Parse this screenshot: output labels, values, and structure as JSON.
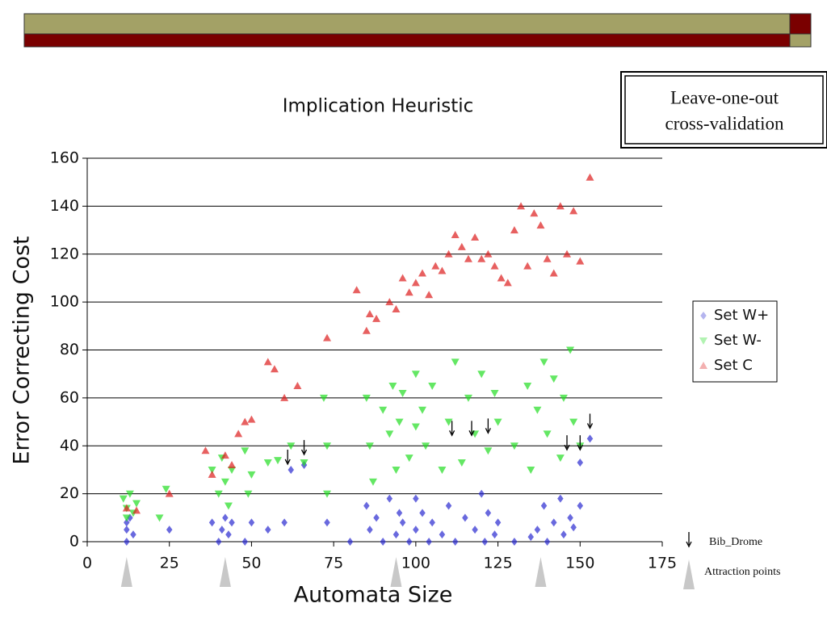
{
  "slide": {
    "box_lines": [
      "Leave-one-out",
      "cross-validation"
    ]
  },
  "chart_data": {
    "type": "scatter",
    "title": "Implication Heuristic",
    "x_label": "Automata Size",
    "y_label": "Error Correcting Cost",
    "xlim": [
      0,
      175
    ],
    "ylim": [
      0,
      160
    ],
    "xticks": [
      0,
      25,
      50,
      75,
      100,
      125,
      150,
      175
    ],
    "yticks": [
      0,
      20,
      40,
      60,
      80,
      100,
      120,
      140,
      160
    ],
    "grid": true,
    "legend": "right",
    "series": [
      {
        "name": "Set W+",
        "color": "#2a2ad0",
        "marker": "diamond",
        "x": [
          12,
          12,
          12,
          13,
          14,
          25,
          38,
          40,
          41,
          42,
          43,
          44,
          48,
          50,
          55,
          60,
          62,
          66,
          73,
          80,
          85,
          86,
          88,
          90,
          92,
          94,
          95,
          96,
          98,
          100,
          100,
          102,
          104,
          105,
          108,
          110,
          112,
          115,
          118,
          120,
          121,
          122,
          124,
          125,
          130,
          135,
          137,
          139,
          140,
          142,
          144,
          145,
          147,
          148,
          150,
          150,
          153
        ],
        "y": [
          8,
          5,
          0,
          10,
          3,
          5,
          8,
          0,
          5,
          10,
          3,
          8,
          0,
          8,
          5,
          8,
          30,
          32,
          8,
          0,
          15,
          5,
          10,
          0,
          18,
          3,
          12,
          8,
          0,
          18,
          5,
          12,
          0,
          8,
          3,
          15,
          0,
          10,
          5,
          20,
          0,
          12,
          3,
          8,
          0,
          2,
          5,
          15,
          0,
          8,
          18,
          3,
          10,
          6,
          15,
          33,
          43
        ]
      },
      {
        "name": "Set W-",
        "color": "#22dd22",
        "marker": "triangle-down",
        "x": [
          11,
          12,
          12,
          13,
          14,
          15,
          22,
          24,
          38,
          40,
          41,
          42,
          43,
          44,
          48,
          49,
          50,
          55,
          58,
          62,
          66,
          72,
          73,
          73,
          85,
          86,
          87,
          90,
          92,
          93,
          94,
          95,
          96,
          98,
          100,
          100,
          102,
          103,
          105,
          108,
          110,
          112,
          114,
          116,
          118,
          120,
          122,
          124,
          125,
          130,
          134,
          135,
          137,
          139,
          140,
          142,
          144,
          145,
          147,
          148,
          150
        ],
        "y": [
          18,
          14,
          10,
          20,
          12,
          16,
          10,
          22,
          30,
          20,
          35,
          25,
          15,
          30,
          38,
          20,
          28,
          33,
          34,
          40,
          33,
          60,
          40,
          20,
          60,
          40,
          25,
          55,
          45,
          65,
          30,
          50,
          62,
          35,
          70,
          48,
          55,
          40,
          65,
          30,
          50,
          75,
          33,
          60,
          45,
          70,
          38,
          62,
          50,
          40,
          65,
          30,
          55,
          75,
          45,
          68,
          35,
          60,
          80,
          50,
          40
        ]
      },
      {
        "name": "Set C",
        "color": "#dd1c1c",
        "marker": "triangle-up",
        "x": [
          12,
          15,
          25,
          36,
          38,
          42,
          44,
          46,
          48,
          50,
          55,
          57,
          60,
          64,
          73,
          82,
          85,
          86,
          88,
          92,
          94,
          96,
          98,
          100,
          102,
          104,
          106,
          108,
          110,
          112,
          114,
          116,
          118,
          120,
          122,
          124,
          126,
          128,
          130,
          132,
          134,
          136,
          138,
          140,
          142,
          144,
          146,
          148,
          150,
          153
        ],
        "y": [
          14,
          13,
          20,
          38,
          28,
          36,
          32,
          45,
          50,
          51,
          75,
          72,
          60,
          65,
          85,
          105,
          88,
          95,
          93,
          100,
          97,
          110,
          104,
          108,
          112,
          103,
          115,
          113,
          120,
          128,
          123,
          118,
          127,
          118,
          120,
          115,
          110,
          108,
          130,
          140,
          115,
          137,
          132,
          118,
          112,
          140,
          120,
          138,
          117,
          152
        ]
      }
    ],
    "bib_drome": {
      "label": "Bib_Drome",
      "x": [
        61,
        66,
        111,
        117,
        122,
        146,
        150,
        153
      ],
      "y": [
        31,
        35,
        43,
        43,
        44,
        37,
        37,
        46
      ]
    },
    "attraction_points": {
      "label": "Attraction points",
      "x": [
        12,
        42,
        94,
        138
      ]
    }
  }
}
